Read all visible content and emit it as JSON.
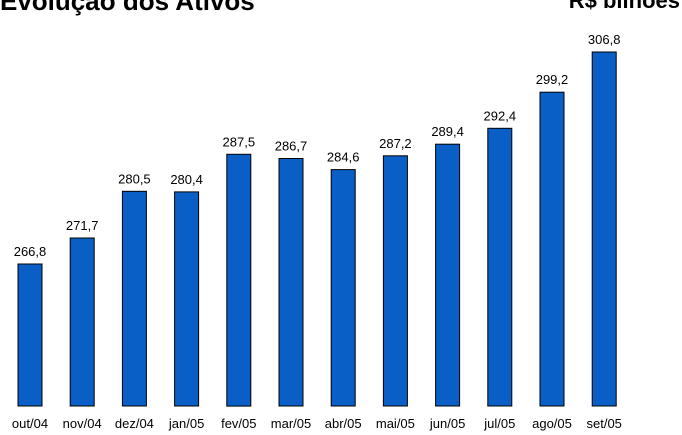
{
  "chart_data": {
    "type": "bar",
    "title": "Evolução dos Ativos",
    "unit_label": "R$ bilhões",
    "categories": [
      "out/04",
      "nov/04",
      "dez/04",
      "jan/05",
      "fev/05",
      "mar/05",
      "abr/05",
      "mai/05",
      "jun/05",
      "jul/05",
      "ago/05",
      "set/05"
    ],
    "values": [
      266.8,
      271.7,
      280.5,
      280.4,
      287.5,
      286.7,
      284.6,
      287.2,
      289.4,
      292.4,
      299.2,
      306.8
    ],
    "value_labels": [
      "266,8",
      "271,7",
      "280,5",
      "280,4",
      "287,5",
      "286,7",
      "284,6",
      "287,2",
      "289,4",
      "292,4",
      "299,2",
      "306,8"
    ],
    "xlabel": "",
    "ylabel": "",
    "ylim": [
      240,
      310
    ],
    "grid": false,
    "legend": "none",
    "colors": {
      "bar_fill": "#0a5fc6",
      "bar_stroke": "#000000"
    }
  }
}
